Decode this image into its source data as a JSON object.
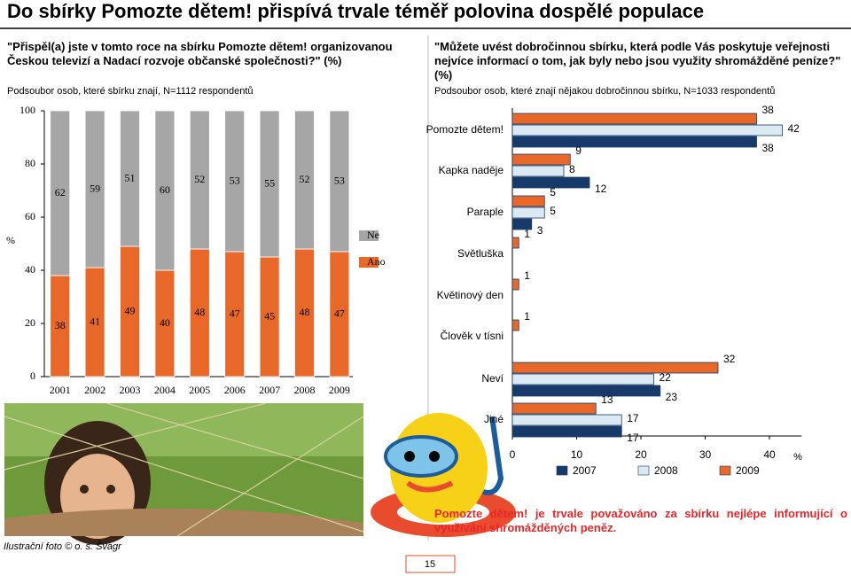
{
  "header": {
    "title": "Do sbírky Pomozte dětem! přispívá trvale téměř polovina dospělé populace"
  },
  "left_panel": {
    "question": "\"Přispěl(a) jste v tomto roce na sbírku Pomozte dětem! organizovanou Českou televizí a Nadací rozvoje občanské společnosti?\" (%)",
    "subset": "Podsoubor osob, které sbírku znají, N=1112 respondentů"
  },
  "right_panel": {
    "question": "\"Můžete uvést dobročinnou sbírku, která podle Vás poskytuje veřejnosti nejvíce informací o tom, jak byly nebo jsou využity shromážděné peníze?\" (%)",
    "subset": "Podsoubor osob, které znají nějakou dobročinnou sbírku, N=1033 respondentů"
  },
  "conclusion": "Pomozte dětem! je trvale považováno za sbírku nejlépe informující o využívání shromážděných peněz.",
  "photo_credit": "Ilustrační foto © o. s. Švagr",
  "page_number": 15,
  "chart_data": [
    {
      "type": "stacked-bar",
      "y_label": "%",
      "categories": [
        "2001",
        "2002",
        "2003",
        "2004",
        "2005",
        "2006",
        "2007",
        "2008",
        "2009"
      ],
      "series": [
        {
          "name": "Ano",
          "color": "#e8682a",
          "values": [
            38,
            41,
            49,
            40,
            48,
            47,
            45,
            48,
            47
          ]
        },
        {
          "name": "Ne",
          "color": "#a6a6a6",
          "values": [
            62,
            59,
            51,
            60,
            52,
            53,
            55,
            52,
            53
          ]
        }
      ],
      "ylim": [
        0,
        100
      ],
      "yticks": [
        0,
        20,
        40,
        60,
        80,
        100
      ]
    },
    {
      "type": "grouped-hbar",
      "x_label": "%",
      "categories": [
        "Pomozte dětem!",
        "Kapka naděje",
        "Paraple",
        "Světluška",
        "Květinový den",
        "Člověk v tísni",
        "Neví",
        "Jiné"
      ],
      "series": [
        {
          "name": "2007",
          "color": "#173a6b",
          "values": [
            38,
            12,
            3,
            null,
            null,
            null,
            23,
            17
          ]
        },
        {
          "name": "2008",
          "color": "#dbe9f2",
          "values": [
            42,
            8,
            5,
            null,
            null,
            null,
            22,
            17
          ]
        },
        {
          "name": "2009",
          "color": "#e8682a",
          "values": [
            38,
            9,
            5,
            1,
            1,
            1,
            32,
            13
          ]
        }
      ],
      "xlim": [
        0,
        45
      ],
      "xticks": [
        0,
        10,
        20,
        30,
        40
      ]
    }
  ]
}
